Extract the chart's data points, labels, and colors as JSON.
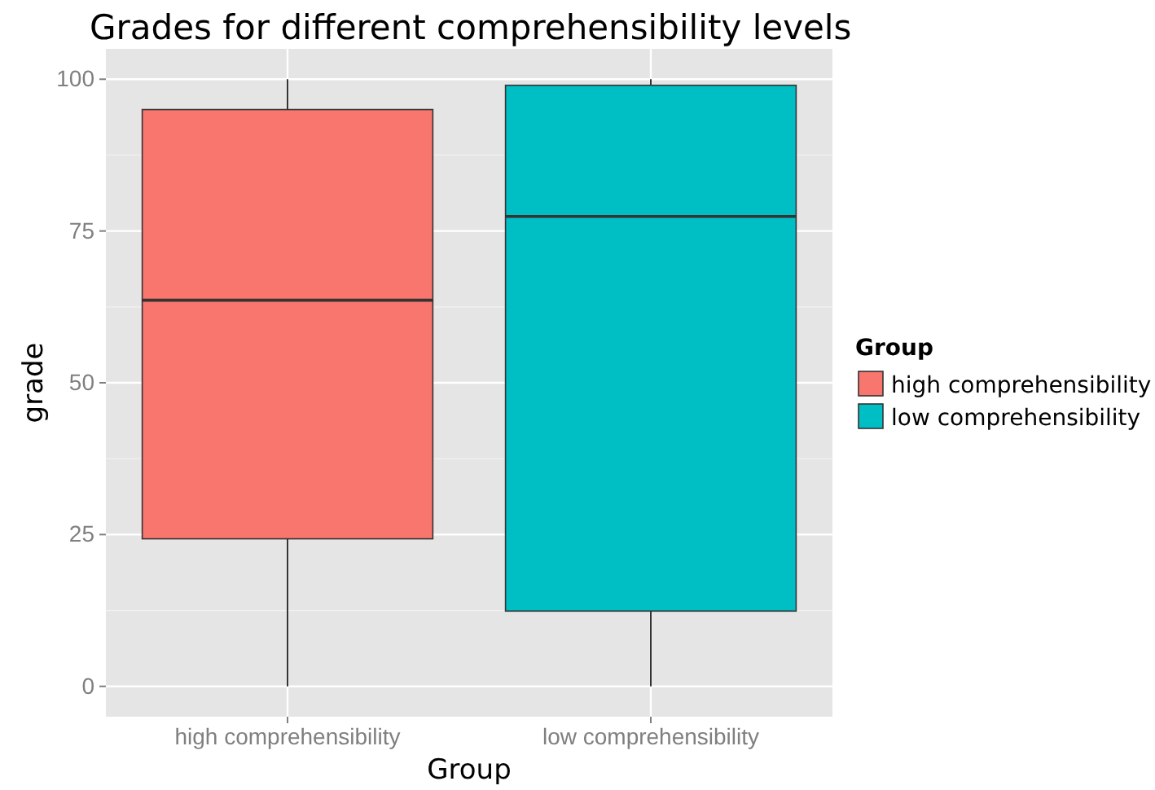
{
  "chart_data": {
    "type": "box",
    "title": "Grades for different comprehensibility levels",
    "xlabel": "Group",
    "ylabel": "grade",
    "legend_title": "Group",
    "categories": [
      "high comprehensibility",
      "low comprehensibility"
    ],
    "series": [
      {
        "name": "high comprehensibility",
        "color": "#f8766d",
        "boxes": [
          {
            "low": 0,
            "q1": 24.3,
            "median": 63.6,
            "q3": 95,
            "high": 100
          },
          null
        ]
      },
      {
        "name": "low comprehensibility",
        "color": "#00bfc4",
        "boxes": [
          null,
          {
            "low": 0,
            "q1": 12.4,
            "median": 77.4,
            "q3": 99,
            "high": 100
          }
        ]
      }
    ],
    "ylim": [
      -5,
      105
    ],
    "yticks": [
      0,
      25,
      50,
      75,
      100
    ],
    "grid": true,
    "legend": "right"
  }
}
